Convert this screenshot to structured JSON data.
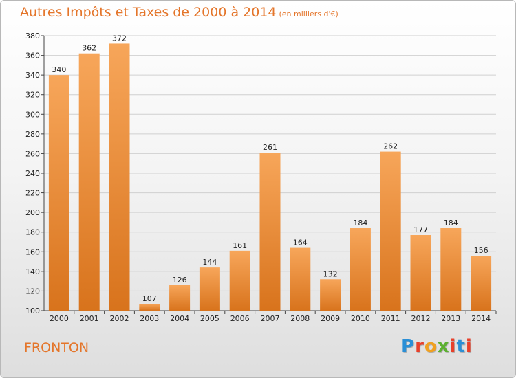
{
  "header": {
    "title": "Autres Impôts et Taxes de 2000 à 2014",
    "unit": "(en milliers d'€)"
  },
  "footer": {
    "place": "FRONTON",
    "logo": "Proxiti",
    "logo_colors": [
      "#2a8fd6",
      "#e8402a",
      "#f0a020",
      "#5bb030",
      "#e8402a",
      "#2a8fd6",
      "#e8402a"
    ]
  },
  "colors": {
    "bar_light": "#f7a65a",
    "bar_dark": "#d8731c",
    "grid": "#d0d0d0",
    "title": "#e4752a"
  },
  "chart_data": {
    "type": "bar",
    "title": "Autres Impôts et Taxes de 2000 à 2014",
    "categories": [
      "2000",
      "2001",
      "2002",
      "2003",
      "2004",
      "2005",
      "2006",
      "2007",
      "2008",
      "2009",
      "2010",
      "2011",
      "2012",
      "2013",
      "2014"
    ],
    "values": [
      340,
      362,
      372,
      107,
      126,
      144,
      161,
      261,
      164,
      132,
      184,
      262,
      177,
      184,
      156
    ],
    "ylim": [
      100,
      380
    ],
    "yticks": [
      100,
      120,
      140,
      160,
      180,
      200,
      220,
      240,
      260,
      280,
      300,
      320,
      340,
      360,
      380
    ],
    "grid": true,
    "xlabel": "",
    "ylabel": ""
  }
}
